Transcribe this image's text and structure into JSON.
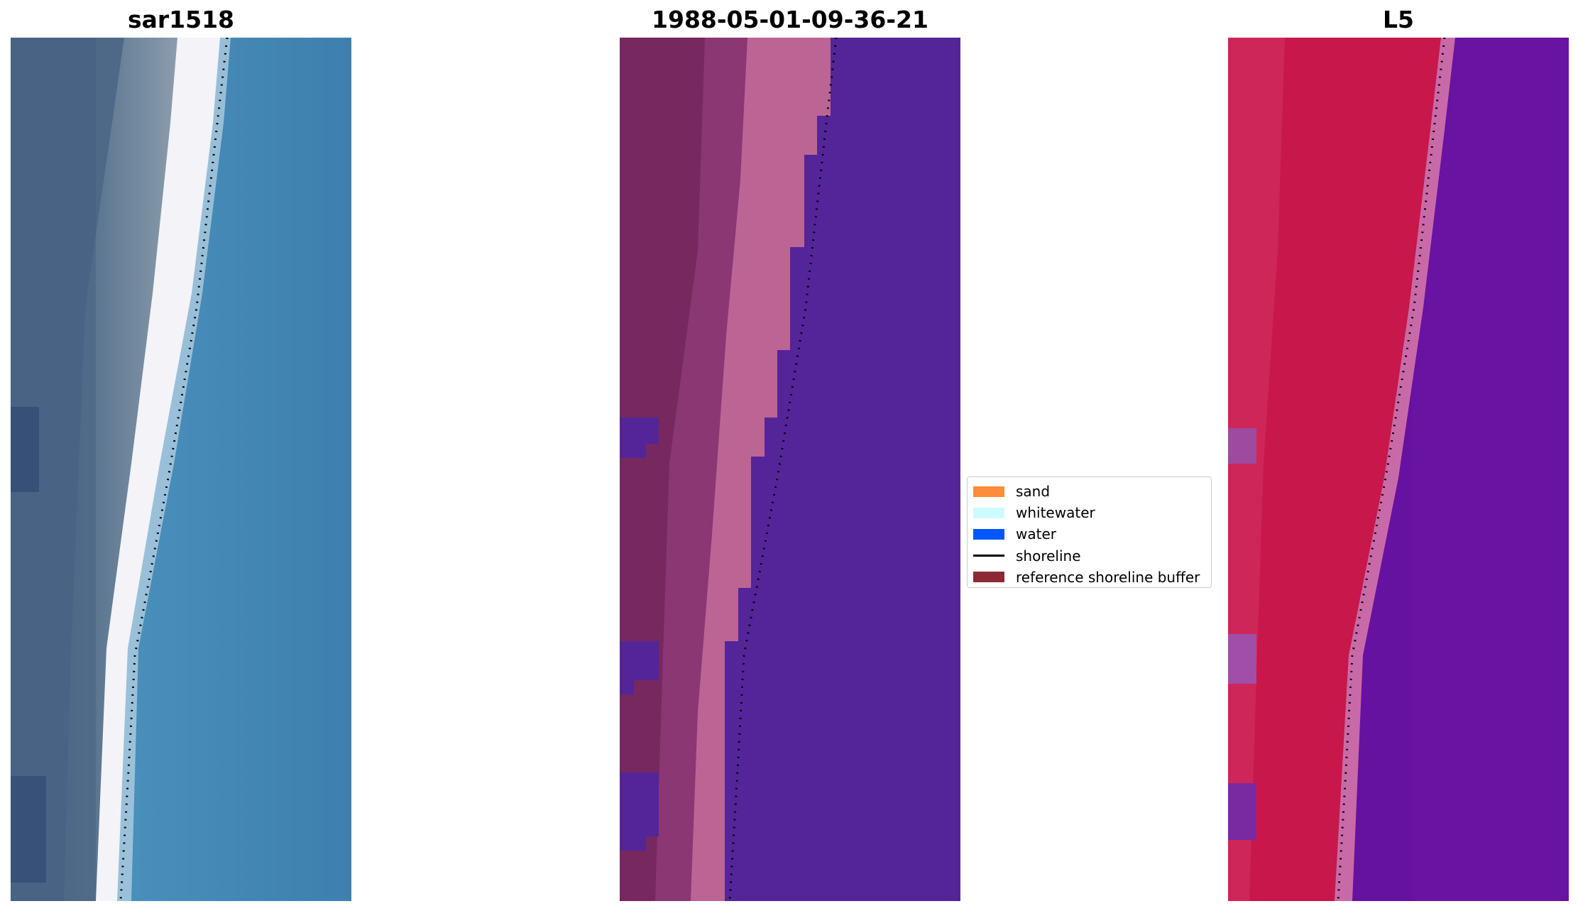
{
  "panels": [
    {
      "title": "sar1518",
      "image": "true-color satellite image of coastline",
      "colors": {
        "land": "#4a6b85",
        "sand": "#eeeef6",
        "water": "#3f82b0"
      }
    },
    {
      "title": "1988-05-01-09-36-21",
      "image": "classified sand and water image",
      "colors": {
        "land": "#7a2a63",
        "sand": "#b85f92",
        "water": "#542599"
      }
    },
    {
      "title": "L5",
      "image": "water index image",
      "colors": {
        "land": "#c8174a",
        "sand": "#cc6aa6",
        "water": "#6211a0"
      }
    }
  ],
  "legend": {
    "items": [
      {
        "label": "sand",
        "color": "#ff8c3a",
        "kind": "patch"
      },
      {
        "label": "whitewater",
        "color": "#ccfcff",
        "kind": "patch"
      },
      {
        "label": "water",
        "color": "#0057ff",
        "kind": "patch"
      },
      {
        "label": "shoreline",
        "color": "#000000",
        "kind": "line"
      },
      {
        "label": "reference shoreline buffer",
        "color": "#8b2a35",
        "kind": "patch"
      }
    ]
  }
}
